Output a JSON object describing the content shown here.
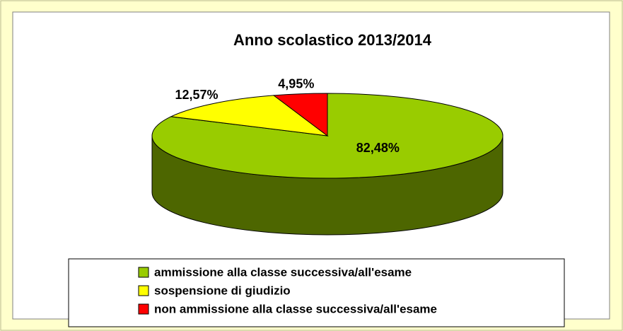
{
  "chart_data": {
    "type": "pie3d",
    "title": "Anno scolastico 2013/2014",
    "categories": [
      "ammissione alla classe successiva/all'esame",
      "sospensione di giudizio",
      "non ammissione alla classe successiva/all'esame"
    ],
    "values": [
      82.48,
      12.57,
      4.95
    ],
    "value_labels": [
      "82,48%",
      "12,57%",
      "4,95%"
    ],
    "colors": [
      "#99cc00",
      "#ffff00",
      "#ff0000"
    ],
    "legend": "bottom"
  }
}
